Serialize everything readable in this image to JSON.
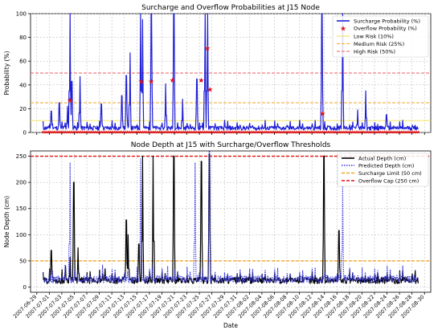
{
  "chart_data": [
    {
      "type": "line",
      "title": "Surcharge and Overflow Probabilities at J15 Node",
      "xlabel": "",
      "ylabel": "Probability (%)",
      "xlim": [
        "2007-06-28",
        "2007-08-31"
      ],
      "ylim": [
        0,
        100
      ],
      "yticks": [
        0,
        20,
        40,
        60,
        80,
        100
      ],
      "grid": true,
      "legend": "top-right",
      "legend_entries": [
        "Surcharge Probability (%)",
        "Overflow Probability (%)",
        "Low Risk (10%)",
        "Medium Risk (25%)",
        "High Risk (50%)"
      ],
      "series": [
        {
          "name": "Surcharge Probability (%)",
          "color": "#1f1fd6",
          "baseline": 3,
          "spikes": [
            {
              "date": "2007-07-01",
              "value": 18
            },
            {
              "date": "2007-07-02",
              "value": 25
            },
            {
              "date": "2007-07-03",
              "value": 22
            },
            {
              "date": "2007-07-04",
              "value": 100
            },
            {
              "date": "2007-07-04",
              "value": 43
            },
            {
              "date": "2007-07-05",
              "value": 47
            },
            {
              "date": "2007-07-09",
              "value": 24
            },
            {
              "date": "2007-07-12",
              "value": 31
            },
            {
              "date": "2007-07-13",
              "value": 67
            },
            {
              "date": "2007-07-13",
              "value": 48
            },
            {
              "date": "2007-07-15",
              "value": 100
            },
            {
              "date": "2007-07-15",
              "value": 95
            },
            {
              "date": "2007-07-17",
              "value": 100
            },
            {
              "date": "2007-07-19",
              "value": 41
            },
            {
              "date": "2007-07-20",
              "value": 100
            },
            {
              "date": "2007-07-22",
              "value": 28
            },
            {
              "date": "2007-07-24",
              "value": 45
            },
            {
              "date": "2007-07-25",
              "value": 100
            },
            {
              "date": "2007-07-26",
              "value": 100
            },
            {
              "date": "2007-08-13",
              "value": 100
            },
            {
              "date": "2007-08-16",
              "value": 100
            },
            {
              "date": "2007-08-19",
              "value": 19
            },
            {
              "date": "2007-08-20",
              "value": 35
            },
            {
              "date": "2007-08-23",
              "value": 15
            }
          ]
        },
        {
          "name": "Overflow Probability (%)",
          "color": "#e01010",
          "points": [
            {
              "date": "2007-07-04",
              "value": 27
            },
            {
              "date": "2007-07-15",
              "value": 43
            },
            {
              "date": "2007-07-17",
              "value": 43
            },
            {
              "date": "2007-07-20",
              "value": 44
            },
            {
              "date": "2007-07-25",
              "value": 44
            },
            {
              "date": "2007-07-26",
              "value": 36
            },
            {
              "date": "2007-07-26",
              "value": 71
            },
            {
              "date": "2007-08-13",
              "value": 16
            }
          ]
        },
        {
          "name": "Low Risk (10%)",
          "value": 10,
          "color": "#f2e14a"
        },
        {
          "name": "Medium Risk (25%)",
          "value": 25,
          "color": "#f5a623"
        },
        {
          "name": "High Risk (50%)",
          "value": 50,
          "color": "#ef5b5b"
        }
      ]
    },
    {
      "type": "line",
      "title": "Node Depth at J15 with Surcharge/Overflow Thresholds",
      "xlabel": "Date",
      "ylabel": "Node Depth (cm)",
      "xlim": [
        "2007-06-28",
        "2007-08-31"
      ],
      "ylim": [
        -10,
        260
      ],
      "yticks": [
        0,
        50,
        100,
        150,
        200,
        250
      ],
      "grid": true,
      "legend": "top-right",
      "legend_entries": [
        "Actual Depth (cm)",
        "Predicted Depth (cm)",
        "Surcharge Limit (50 cm)",
        "Overflow Cap (250 cm)"
      ],
      "categories": [
        "2007-06-29",
        "2007-07-01",
        "2007-07-03",
        "2007-07-05",
        "2007-07-07",
        "2007-07-09",
        "2007-07-11",
        "2007-07-13",
        "2007-07-15",
        "2007-07-17",
        "2007-07-19",
        "2007-07-21",
        "2007-07-23",
        "2007-07-25",
        "2007-07-27",
        "2007-07-29",
        "2007-07-31",
        "2007-08-02",
        "2007-08-04",
        "2007-08-06",
        "2007-08-08",
        "2007-08-10",
        "2007-08-12",
        "2007-08-14",
        "2007-08-16",
        "2007-08-18",
        "2007-08-20",
        "2007-08-22",
        "2007-08-24",
        "2007-08-26",
        "2007-08-28",
        "2007-08-30"
      ],
      "series": [
        {
          "name": "Actual Depth (cm)",
          "color": "#000000",
          "baseline": 10,
          "spikes": [
            {
              "date": "2007-07-01",
              "value": 70
            },
            {
              "date": "2007-07-03",
              "value": 40
            },
            {
              "date": "2007-07-04",
              "value": 200
            },
            {
              "date": "2007-07-04",
              "value": 57
            },
            {
              "date": "2007-07-05",
              "value": 75
            },
            {
              "date": "2007-07-09",
              "value": 35
            },
            {
              "date": "2007-07-13",
              "value": 128
            },
            {
              "date": "2007-07-13",
              "value": 100
            },
            {
              "date": "2007-07-15",
              "value": 250
            },
            {
              "date": "2007-07-15",
              "value": 82
            },
            {
              "date": "2007-07-17",
              "value": 250
            },
            {
              "date": "2007-07-20",
              "value": 250
            },
            {
              "date": "2007-07-25",
              "value": 240
            },
            {
              "date": "2007-07-26",
              "value": 255
            },
            {
              "date": "2007-08-13",
              "value": 250
            },
            {
              "date": "2007-08-16",
              "value": 108
            }
          ]
        },
        {
          "name": "Predicted Depth (cm)",
          "color": "#3a3ae0",
          "baseline": 12,
          "spikes": [
            {
              "date": "2007-07-04",
              "value": 238
            },
            {
              "date": "2007-07-15",
              "value": 245
            },
            {
              "date": "2007-07-19",
              "value": 40
            },
            {
              "date": "2007-07-24",
              "value": 238
            },
            {
              "date": "2007-07-26",
              "value": 260
            },
            {
              "date": "2007-08-16",
              "value": 193
            }
          ]
        },
        {
          "name": "Surcharge Limit (50 cm)",
          "value": 50,
          "color": "#f5a623"
        },
        {
          "name": "Overflow Cap (250 cm)",
          "value": 250,
          "color": "#e01010"
        }
      ]
    }
  ]
}
